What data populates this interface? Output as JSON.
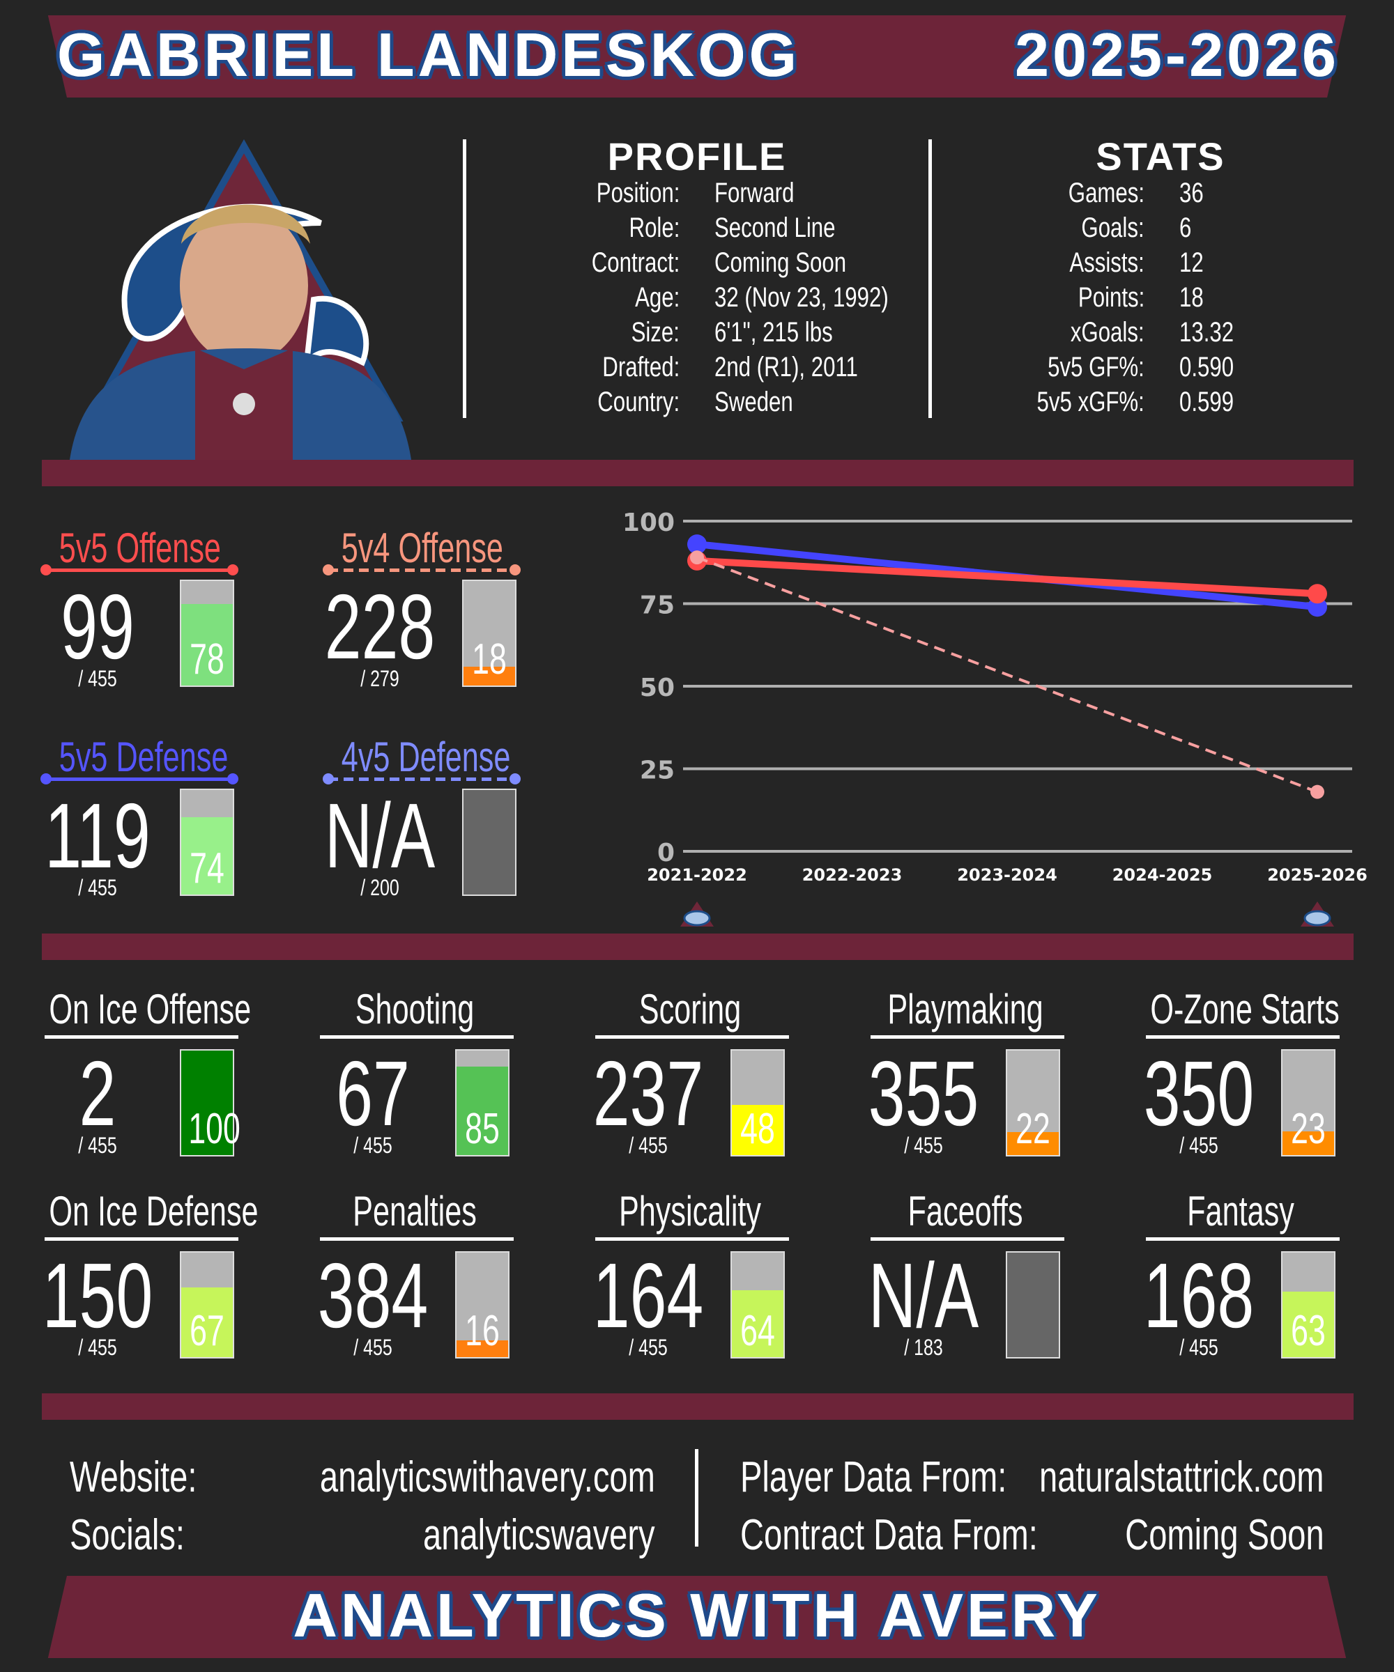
{
  "header": {
    "name": "GABRIEL LANDESKOG",
    "season": "2025-2026"
  },
  "colors": {
    "brand": "#6d2439",
    "background": "#252525",
    "outline_blue": "#1f4a8a"
  },
  "profile": {
    "heading": "PROFILE",
    "rows": [
      {
        "label": "Position:",
        "value": "Forward"
      },
      {
        "label": "Role:",
        "value": "Second Line"
      },
      {
        "label": "Contract:",
        "value": "Coming Soon"
      },
      {
        "label": "Age:",
        "value": "32 (Nov 23, 1992)"
      },
      {
        "label": "Size:",
        "value": "6'1\", 215 lbs"
      },
      {
        "label": "Drafted:",
        "value": "2nd (R1), 2011"
      },
      {
        "label": "Country:",
        "value": "Sweden"
      }
    ]
  },
  "stats": {
    "heading": "STATS",
    "rows": [
      {
        "label": "Games:",
        "value": "36"
      },
      {
        "label": "Goals:",
        "value": "6"
      },
      {
        "label": "Assists:",
        "value": "12"
      },
      {
        "label": "Points:",
        "value": "18"
      },
      {
        "label": "xGoals:",
        "value": "13.32"
      },
      {
        "label": "5v5 GF%:",
        "value": "0.590"
      },
      {
        "label": "5v5 xGF%:",
        "value": "0.599"
      }
    ]
  },
  "special_metrics": [
    {
      "label": "5v5 Offense",
      "rank": "99",
      "denom": "/ 455",
      "pct": "78",
      "pct_value": 78,
      "label_color": "#ff4e4e",
      "fill": "#7ee07e",
      "line": "solid"
    },
    {
      "label": "5v4 Offense",
      "rank": "228",
      "denom": "/ 279",
      "pct": "18",
      "pct_value": 18,
      "label_color": "#f7967e",
      "fill": "#ff7f0e",
      "line": "dashed"
    },
    {
      "label": "5v5 Defense",
      "rank": "119",
      "denom": "/ 455",
      "pct": "74",
      "pct_value": 74,
      "label_color": "#5555ff",
      "fill": "#98f08a",
      "line": "solid"
    },
    {
      "label": "4v5 Defense",
      "rank": "N/A",
      "denom": "/ 200",
      "pct": "",
      "pct_value": null,
      "label_color": "#7f8cff",
      "fill": "#666666",
      "line": "dashed"
    }
  ],
  "chart_data": {
    "type": "line",
    "categories": [
      "2021-2022",
      "2022-2023",
      "2023-2024",
      "2024-2025",
      "2025-2026"
    ],
    "ylim": [
      0,
      100
    ],
    "yticks": [
      "0",
      "25",
      "50",
      "75",
      "100"
    ],
    "grid": true,
    "series": [
      {
        "color": "#4444ff",
        "style": "solid",
        "points": [
          [
            0,
            93
          ],
          [
            4,
            74
          ]
        ]
      },
      {
        "color": "#ff4a4a",
        "style": "solid",
        "points": [
          [
            0,
            88
          ],
          [
            4,
            78
          ]
        ]
      },
      {
        "color": "#f7a0a0",
        "style": "dashed",
        "points": [
          [
            0,
            89
          ],
          [
            4,
            18
          ]
        ]
      }
    ],
    "team_logo_years": [
      "2021-2022",
      "2025-2026"
    ]
  },
  "metrics": [
    {
      "label": "On Ice Offense",
      "rank": "2",
      "denom": "/ 455",
      "pct": "100",
      "pct_value": 100,
      "fill": "#008000"
    },
    {
      "label": "Shooting",
      "rank": "67",
      "denom": "/ 455",
      "pct": "85",
      "pct_value": 85,
      "fill": "#55c255"
    },
    {
      "label": "Scoring",
      "rank": "237",
      "denom": "/ 455",
      "pct": "48",
      "pct_value": 48,
      "fill": "#ffff00"
    },
    {
      "label": "Playmaking",
      "rank": "355",
      "denom": "/ 455",
      "pct": "22",
      "pct_value": 22,
      "fill": "#ff8c00"
    },
    {
      "label": "O-Zone Starts",
      "rank": "350",
      "denom": "/ 455",
      "pct": "23",
      "pct_value": 23,
      "fill": "#ff8c00"
    },
    {
      "label": "On Ice Defense",
      "rank": "150",
      "denom": "/ 455",
      "pct": "67",
      "pct_value": 67,
      "fill": "#c6f55a"
    },
    {
      "label": "Penalties",
      "rank": "384",
      "denom": "/ 455",
      "pct": "16",
      "pct_value": 16,
      "fill": "#ff7f0e"
    },
    {
      "label": "Physicality",
      "rank": "164",
      "denom": "/ 455",
      "pct": "64",
      "pct_value": 64,
      "fill": "#c6f55a"
    },
    {
      "label": "Faceoffs",
      "rank": "N/A",
      "denom": "/ 183",
      "pct": "",
      "pct_value": null,
      "fill": "#666666"
    },
    {
      "label": "Fantasy",
      "rank": "168",
      "denom": "/ 455",
      "pct": "63",
      "pct_value": 63,
      "fill": "#c6f55a"
    }
  ],
  "footer": {
    "website_label": "Website:",
    "website_value": "analyticswithavery.com",
    "socials_label": "Socials:",
    "socials_value": "analyticswavery",
    "player_label": "Player Data From:",
    "player_value": "naturalstattrick.com",
    "contract_label": "Contract Data From:",
    "contract_value": "Coming Soon",
    "brand": "ANALYTICS WITH AVERY"
  }
}
